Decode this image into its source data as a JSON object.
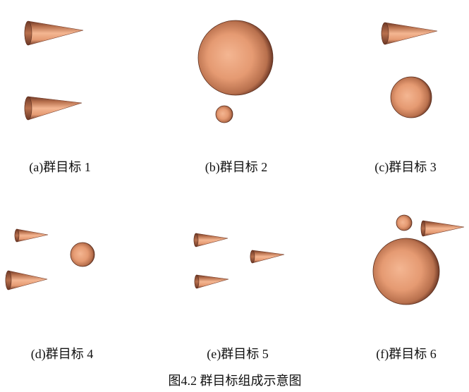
{
  "figure": {
    "panels": [
      {
        "label": "(a)群目标 1"
      },
      {
        "label": "(b)群目标 2"
      },
      {
        "label": "(c)群目标 3"
      },
      {
        "label": "(d)群目标 4"
      },
      {
        "label": "(e)群目标 5"
      },
      {
        "label": "(f)群目标 6"
      }
    ],
    "caption": "图4.2 群目标组成示意图"
  },
  "colors": {
    "highlight": "#f4b692",
    "surface": "#e59a72",
    "shadow": "#b8704d",
    "edge": "#6d3826"
  }
}
